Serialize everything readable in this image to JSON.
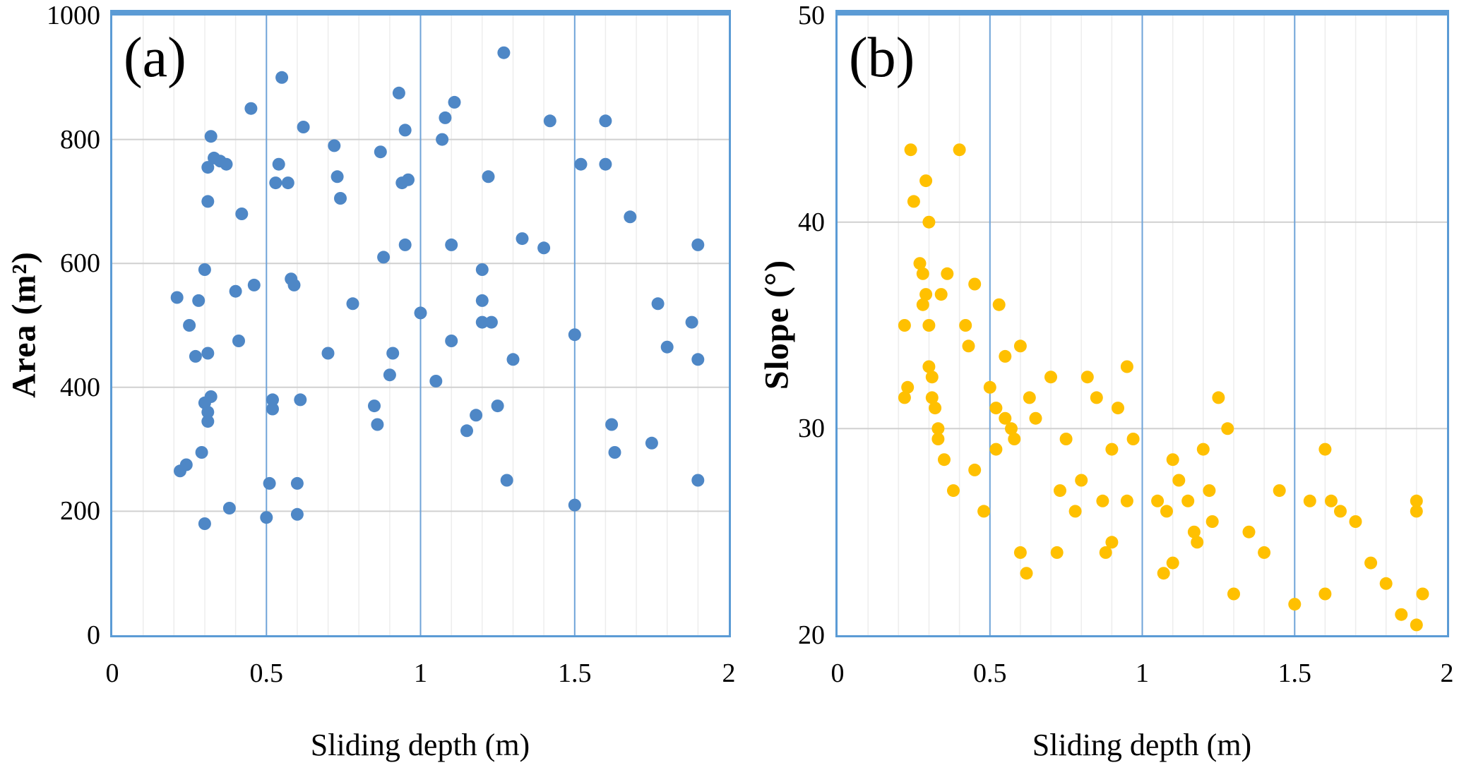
{
  "figure": {
    "background": "#ffffff",
    "border_color": "#5B9BD5",
    "major_h_grid_color": "#d0d0d0",
    "major_v_grid_color": "#6fa3d8",
    "minor_grid_color": "#ededed"
  },
  "chart_data": [
    {
      "type": "scatter",
      "panel_label": "(a)",
      "xlabel": "Sliding depth (m)",
      "ylabel": "Area (m²)",
      "xlim": [
        0,
        2
      ],
      "ylim": [
        0,
        1000
      ],
      "grid": "on",
      "legend": "none",
      "marker_color": "#4E87C6",
      "minor_x_step": 0.1,
      "major_x_gridlines": [
        0.5,
        1,
        1.5
      ],
      "x_ticks": [
        {
          "v": 0,
          "label": "0"
        },
        {
          "v": 0.5,
          "label": "0.5"
        },
        {
          "v": 1,
          "label": "1"
        },
        {
          "v": 1.5,
          "label": "1.5"
        },
        {
          "v": 2,
          "label": "2"
        }
      ],
      "y_ticks": [
        {
          "v": 0,
          "label": "0"
        },
        {
          "v": 200,
          "label": "200"
        },
        {
          "v": 400,
          "label": "400"
        },
        {
          "v": 600,
          "label": "600"
        },
        {
          "v": 800,
          "label": "800"
        },
        {
          "v": 1000,
          "label": "1000"
        }
      ],
      "points": [
        [
          0.21,
          545
        ],
        [
          0.22,
          265
        ],
        [
          0.24,
          275
        ],
        [
          0.25,
          500
        ],
        [
          0.27,
          450
        ],
        [
          0.28,
          540
        ],
        [
          0.29,
          295
        ],
        [
          0.3,
          180
        ],
        [
          0.3,
          375
        ],
        [
          0.31,
          345
        ],
        [
          0.31,
          360
        ],
        [
          0.31,
          455
        ],
        [
          0.32,
          385
        ],
        [
          0.3,
          590
        ],
        [
          0.31,
          700
        ],
        [
          0.31,
          755
        ],
        [
          0.32,
          805
        ],
        [
          0.33,
          770
        ],
        [
          0.35,
          765
        ],
        [
          0.37,
          760
        ],
        [
          0.38,
          205
        ],
        [
          0.4,
          555
        ],
        [
          0.41,
          475
        ],
        [
          0.42,
          680
        ],
        [
          0.45,
          850
        ],
        [
          0.46,
          565
        ],
        [
          0.5,
          190
        ],
        [
          0.51,
          245
        ],
        [
          0.52,
          365
        ],
        [
          0.52,
          380
        ],
        [
          0.53,
          730
        ],
        [
          0.54,
          760
        ],
        [
          0.55,
          900
        ],
        [
          0.57,
          730
        ],
        [
          0.58,
          575
        ],
        [
          0.59,
          565
        ],
        [
          0.6,
          195
        ],
        [
          0.6,
          245
        ],
        [
          0.61,
          380
        ],
        [
          0.62,
          820
        ],
        [
          0.7,
          455
        ],
        [
          0.72,
          790
        ],
        [
          0.73,
          740
        ],
        [
          0.74,
          705
        ],
        [
          0.78,
          535
        ],
        [
          0.85,
          370
        ],
        [
          0.86,
          340
        ],
        [
          0.87,
          780
        ],
        [
          0.88,
          610
        ],
        [
          0.9,
          420
        ],
        [
          0.91,
          455
        ],
        [
          0.93,
          875
        ],
        [
          0.94,
          730
        ],
        [
          0.95,
          630
        ],
        [
          0.95,
          815
        ],
        [
          0.96,
          735
        ],
        [
          1.0,
          520
        ],
        [
          1.05,
          410
        ],
        [
          1.07,
          800
        ],
        [
          1.08,
          835
        ],
        [
          1.1,
          630
        ],
        [
          1.1,
          475
        ],
        [
          1.11,
          860
        ],
        [
          1.15,
          330
        ],
        [
          1.18,
          355
        ],
        [
          1.2,
          505
        ],
        [
          1.2,
          540
        ],
        [
          1.2,
          590
        ],
        [
          1.22,
          740
        ],
        [
          1.23,
          505
        ],
        [
          1.25,
          370
        ],
        [
          1.27,
          940
        ],
        [
          1.28,
          250
        ],
        [
          1.3,
          445
        ],
        [
          1.33,
          640
        ],
        [
          1.4,
          625
        ],
        [
          1.42,
          830
        ],
        [
          1.5,
          210
        ],
        [
          1.5,
          485
        ],
        [
          1.52,
          760
        ],
        [
          1.6,
          830
        ],
        [
          1.6,
          760
        ],
        [
          1.62,
          340
        ],
        [
          1.63,
          295
        ],
        [
          1.68,
          675
        ],
        [
          1.75,
          310
        ],
        [
          1.77,
          535
        ],
        [
          1.8,
          465
        ],
        [
          1.88,
          505
        ],
        [
          1.9,
          250
        ],
        [
          1.9,
          445
        ],
        [
          1.9,
          630
        ]
      ]
    },
    {
      "type": "scatter",
      "panel_label": "(b)",
      "xlabel": "Sliding depth (m)",
      "ylabel": "Slope (°)",
      "xlim": [
        0,
        2
      ],
      "ylim": [
        20,
        50
      ],
      "grid": "on",
      "legend": "none",
      "marker_color": "#FFC000",
      "minor_x_step": 0.1,
      "major_x_gridlines": [
        0.5,
        1,
        1.5
      ],
      "x_ticks": [
        {
          "v": 0,
          "label": "0"
        },
        {
          "v": 0.5,
          "label": "0.5"
        },
        {
          "v": 1,
          "label": "1"
        },
        {
          "v": 1.5,
          "label": "1.5"
        },
        {
          "v": 2,
          "label": "2"
        }
      ],
      "y_ticks": [
        {
          "v": 20,
          "label": "20"
        },
        {
          "v": 30,
          "label": "30"
        },
        {
          "v": 40,
          "label": "40"
        },
        {
          "v": 50,
          "label": "50"
        }
      ],
      "points": [
        [
          0.22,
          35
        ],
        [
          0.22,
          31.5
        ],
        [
          0.23,
          32
        ],
        [
          0.24,
          43.5
        ],
        [
          0.25,
          41
        ],
        [
          0.27,
          38
        ],
        [
          0.28,
          37.5
        ],
        [
          0.28,
          36
        ],
        [
          0.29,
          42
        ],
        [
          0.29,
          36.5
        ],
        [
          0.3,
          33
        ],
        [
          0.3,
          35
        ],
        [
          0.3,
          40
        ],
        [
          0.31,
          32.5
        ],
        [
          0.31,
          31.5
        ],
        [
          0.32,
          31
        ],
        [
          0.33,
          30
        ],
        [
          0.33,
          29.5
        ],
        [
          0.34,
          36.5
        ],
        [
          0.35,
          28.5
        ],
        [
          0.36,
          37.5
        ],
        [
          0.38,
          27
        ],
        [
          0.4,
          43.5
        ],
        [
          0.42,
          35
        ],
        [
          0.43,
          34
        ],
        [
          0.45,
          37
        ],
        [
          0.45,
          28
        ],
        [
          0.48,
          26
        ],
        [
          0.5,
          32
        ],
        [
          0.52,
          31
        ],
        [
          0.52,
          29
        ],
        [
          0.53,
          36
        ],
        [
          0.55,
          30.5
        ],
        [
          0.55,
          33.5
        ],
        [
          0.57,
          30
        ],
        [
          0.58,
          29.5
        ],
        [
          0.6,
          24
        ],
        [
          0.6,
          34
        ],
        [
          0.62,
          23
        ],
        [
          0.63,
          31.5
        ],
        [
          0.65,
          30.5
        ],
        [
          0.7,
          32.5
        ],
        [
          0.72,
          24
        ],
        [
          0.73,
          27
        ],
        [
          0.75,
          29.5
        ],
        [
          0.78,
          26
        ],
        [
          0.8,
          27.5
        ],
        [
          0.82,
          32.5
        ],
        [
          0.85,
          31.5
        ],
        [
          0.87,
          26.5
        ],
        [
          0.88,
          24
        ],
        [
          0.9,
          29
        ],
        [
          0.9,
          24.5
        ],
        [
          0.92,
          31
        ],
        [
          0.95,
          33
        ],
        [
          0.95,
          26.5
        ],
        [
          0.97,
          29.5
        ],
        [
          1.05,
          26.5
        ],
        [
          1.07,
          23
        ],
        [
          1.08,
          26
        ],
        [
          1.1,
          23.5
        ],
        [
          1.1,
          28.5
        ],
        [
          1.12,
          27.5
        ],
        [
          1.15,
          26.5
        ],
        [
          1.17,
          25
        ],
        [
          1.18,
          24.5
        ],
        [
          1.2,
          29
        ],
        [
          1.22,
          27
        ],
        [
          1.23,
          25.5
        ],
        [
          1.25,
          31.5
        ],
        [
          1.28,
          30
        ],
        [
          1.3,
          22
        ],
        [
          1.35,
          25
        ],
        [
          1.4,
          24
        ],
        [
          1.45,
          27
        ],
        [
          1.5,
          21.5
        ],
        [
          1.55,
          26.5
        ],
        [
          1.6,
          22
        ],
        [
          1.6,
          29
        ],
        [
          1.62,
          26.5
        ],
        [
          1.65,
          26
        ],
        [
          1.7,
          25.5
        ],
        [
          1.75,
          23.5
        ],
        [
          1.8,
          22.5
        ],
        [
          1.85,
          21
        ],
        [
          1.9,
          26.5
        ],
        [
          1.9,
          26
        ],
        [
          1.9,
          20.5
        ],
        [
          1.92,
          22
        ]
      ]
    }
  ]
}
